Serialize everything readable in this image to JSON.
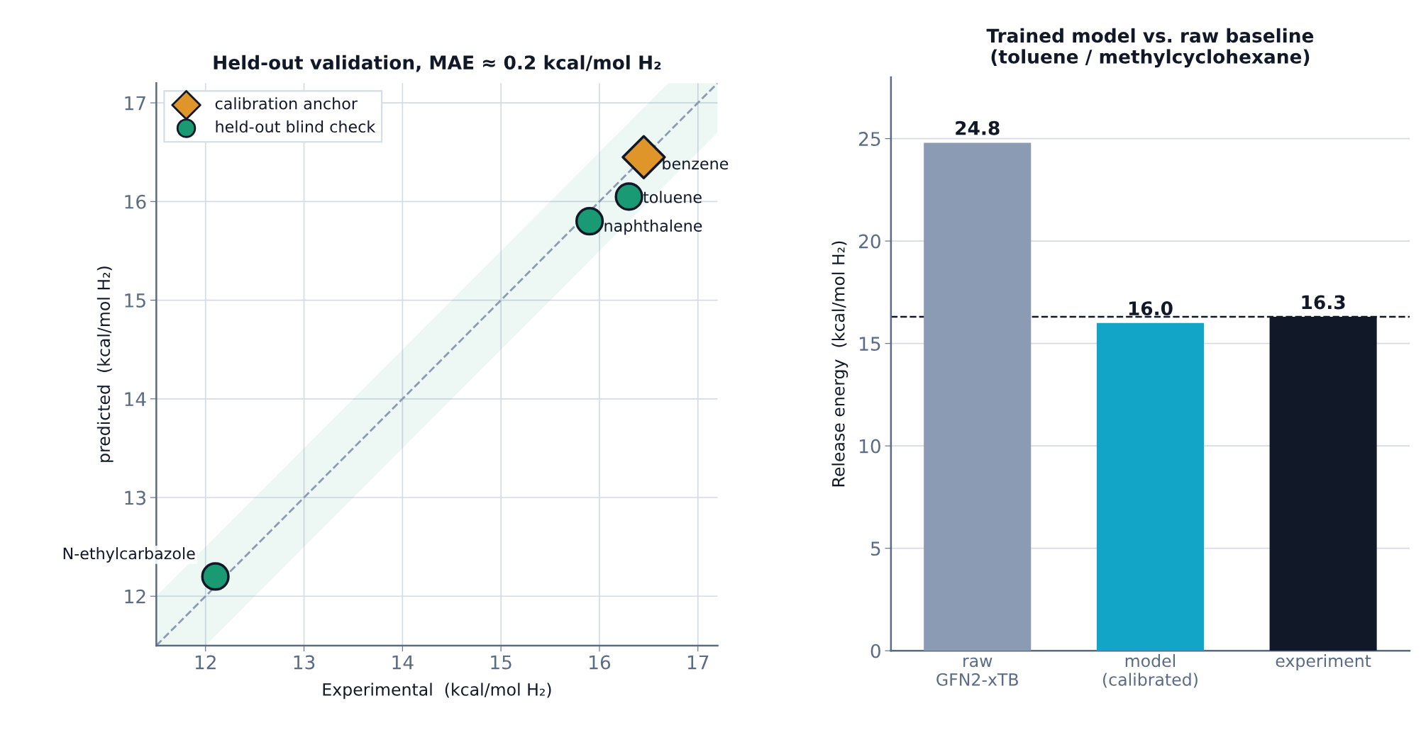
{
  "chart_data": [
    {
      "type": "scatter",
      "title": "Held-out validation, MAE ≈ 0.2 kcal/mol H₂",
      "xlabel": "Experimental  (kcal/mol H₂)",
      "ylabel": "predicted  (kcal/mol H₂)",
      "xlim": [
        11.5,
        17.2
      ],
      "ylim": [
        11.5,
        17.2
      ],
      "xticks": [
        12,
        13,
        14,
        15,
        16,
        17
      ],
      "yticks": [
        12,
        13,
        14,
        15,
        16,
        17
      ],
      "grid": true,
      "legend": "top left",
      "series": [
        {
          "type": "line",
          "color": "#8b9bb4",
          "line_style": "dashed",
          "x": [
            11.5,
            12,
            16.7,
            17.2
          ],
          "values": [
            11.5,
            12,
            16.7,
            17.2
          ],
          "lower": [
            11.5,
            11.5,
            16.2,
            16.7
          ],
          "upper": [
            12.0,
            12.5,
            17.2,
            17.2
          ]
        },
        {
          "name": "calibration anchor",
          "color": "#e0952a",
          "marker": "diamond",
          "x": [
            16.45
          ],
          "values": [
            16.45
          ]
        },
        {
          "name": "held-out blind check",
          "color": "#1a9a72",
          "marker": "circle",
          "x": [
            16.3,
            15.9,
            12.1
          ],
          "values": [
            16.05,
            15.8,
            12.2
          ]
        }
      ],
      "annotations": [
        {
          "text": "benzene",
          "x": 16.45,
          "y": 16.45
        },
        {
          "text": "toluene",
          "x": 16.3,
          "y": 16.05
        },
        {
          "text": "naphthalene",
          "x": 15.9,
          "y": 15.8
        },
        {
          "text": "N-ethylcarbazole",
          "x": 12.1,
          "y": 12.2
        }
      ]
    },
    {
      "type": "bar",
      "title": "Trained model vs. raw baseline\n(toluene / methylcyclohexane)",
      "ylabel": "Release energy  (kcal/mol H₂)",
      "categories": [
        "raw\nGFN2-xTB",
        "model\n(calibrated)",
        "experiment"
      ],
      "values": [
        24.8,
        16.0,
        16.3
      ],
      "value_labels": [
        "24.8",
        "16.0",
        "16.3"
      ],
      "colors": [
        "#8b9bb4",
        "#12a5c7",
        "#111827"
      ],
      "ylim": [
        0,
        28
      ],
      "yticks": [
        0,
        5,
        10,
        15,
        20,
        25
      ],
      "grid": "y",
      "ref_lines": [
        {
          "axis": "y",
          "value": 16.3,
          "color": "#111827",
          "line_style": "dashed"
        }
      ]
    }
  ]
}
